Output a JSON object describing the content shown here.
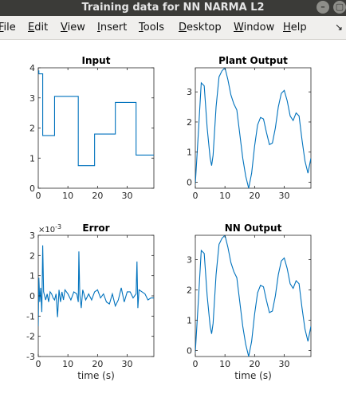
{
  "window": {
    "title": "Training data for NN NARMA L2",
    "minimize_glyph": "–",
    "maximize_glyph": "▢"
  },
  "menubar": {
    "items": [
      {
        "label": "File",
        "u": "F",
        "rest": "ile"
      },
      {
        "label": "Edit",
        "u": "E",
        "rest": "dit"
      },
      {
        "label": "View",
        "u": "V",
        "rest": "iew"
      },
      {
        "label": "Insert",
        "u": "I",
        "rest": "nsert"
      },
      {
        "label": "Tools",
        "u": "T",
        "rest": "ools"
      },
      {
        "label": "Desktop",
        "u": "D",
        "rest": "esktop"
      },
      {
        "label": "Window",
        "u": "W",
        "rest": "indow"
      },
      {
        "label": "Help",
        "u": "H",
        "rest": "elp"
      }
    ],
    "overflow_icon": "arrow-icon",
    "overflow_glyph": "↘"
  },
  "chart_data": [
    {
      "type": "line",
      "title": "Input",
      "xlabel": "",
      "ylabel": "",
      "xlim": [
        0,
        39
      ],
      "ylim": [
        0,
        4
      ],
      "xticks": [
        0,
        10,
        20,
        30
      ],
      "yticks": [
        0,
        1,
        2,
        3,
        4
      ],
      "color": "#0072bd",
      "series": [
        {
          "x": [
            0,
            0.2,
            0.2,
            1.5,
            1.5,
            5.5,
            5.5,
            13.5,
            13.5,
            19,
            19,
            26,
            26,
            33,
            33,
            39
          ],
          "y": [
            3.9,
            3.9,
            3.8,
            3.8,
            1.75,
            1.75,
            3.05,
            3.05,
            0.75,
            0.75,
            1.8,
            1.8,
            2.85,
            2.85,
            1.1,
            1.1
          ]
        }
      ]
    },
    {
      "type": "line",
      "title": "Plant Output",
      "xlabel": "",
      "ylabel": "",
      "xlim": [
        0,
        39
      ],
      "ylim": [
        -0.2,
        3.8
      ],
      "xticks": [
        0,
        10,
        20,
        30
      ],
      "yticks": [
        0,
        1,
        2,
        3
      ],
      "color": "#0072bd",
      "series": [
        {
          "x": [
            0,
            1,
            2,
            3,
            4,
            5,
            5.5,
            6,
            7,
            8,
            9,
            10,
            11,
            12,
            13,
            14,
            15,
            16,
            17,
            18,
            19,
            20,
            21,
            22,
            23,
            24,
            25,
            26,
            27,
            28,
            29,
            30,
            31,
            32,
            33,
            34,
            35,
            36,
            37,
            38,
            39
          ],
          "y": [
            -0.05,
            1.6,
            3.3,
            3.2,
            1.8,
            0.8,
            0.55,
            0.9,
            2.5,
            3.5,
            3.7,
            3.8,
            3.4,
            2.9,
            2.6,
            2.4,
            1.6,
            0.8,
            0.2,
            -0.2,
            0.3,
            1.2,
            1.9,
            2.15,
            2.1,
            1.65,
            1.25,
            1.3,
            1.8,
            2.5,
            2.95,
            3.05,
            2.7,
            2.2,
            2.05,
            2.3,
            2.2,
            1.4,
            0.7,
            0.3,
            0.8
          ]
        }
      ]
    },
    {
      "type": "line",
      "title": "Error",
      "exponent_label": "×10",
      "exponent_power": "-3",
      "xlabel": "time (s)",
      "ylabel": "",
      "xlim": [
        0,
        39
      ],
      "ylim": [
        -3,
        3
      ],
      "xticks": [
        0,
        10,
        20,
        30
      ],
      "yticks": [
        -3,
        -2,
        -1,
        0,
        1,
        2,
        3
      ],
      "color": "#0072bd",
      "series": [
        {
          "x": [
            0,
            0.2,
            0.5,
            0.8,
            1.2,
            1.5,
            1.8,
            2.5,
            3,
            3.5,
            4,
            4.5,
            5,
            5.5,
            6,
            6.5,
            7,
            7.5,
            8,
            8.5,
            9,
            10,
            11,
            12,
            13,
            13.5,
            13.7,
            14,
            14.5,
            15,
            16,
            17,
            18,
            19,
            20,
            21,
            22,
            23,
            24,
            25,
            26,
            27,
            28,
            29,
            30,
            31,
            32,
            33,
            33.3,
            33.6,
            34,
            35,
            36,
            37,
            38,
            39
          ],
          "y": [
            -1.5,
            0.9,
            -0.3,
            0.4,
            -0.8,
            2.5,
            0.2,
            -0.2,
            0.1,
            -0.3,
            0.2,
            0.1,
            -0.1,
            -0.2,
            0.1,
            -1.05,
            0.3,
            -0.3,
            0.2,
            -0.2,
            0.3,
            0.1,
            -0.2,
            0.2,
            0.1,
            -0.3,
            2.2,
            0.1,
            -0.6,
            0.3,
            -0.2,
            0.1,
            -0.2,
            0.2,
            0.3,
            -0.1,
            0.1,
            -0.3,
            -0.4,
            0.1,
            -0.5,
            -0.2,
            0.4,
            -0.3,
            0.2,
            0.2,
            -0.1,
            0.1,
            1.7,
            -0.6,
            0.3,
            0.2,
            0.1,
            -0.2,
            -0.1,
            -0.1
          ]
        }
      ]
    },
    {
      "type": "line",
      "title": "NN Output",
      "xlabel": "time (s)",
      "ylabel": "",
      "xlim": [
        0,
        39
      ],
      "ylim": [
        -0.2,
        3.8
      ],
      "xticks": [
        0,
        10,
        20,
        30
      ],
      "yticks": [
        0,
        1,
        2,
        3
      ],
      "color": "#0072bd",
      "series": [
        {
          "x": [
            0,
            1,
            2,
            3,
            4,
            5,
            5.5,
            6,
            7,
            8,
            9,
            10,
            11,
            12,
            13,
            14,
            15,
            16,
            17,
            18,
            19,
            20,
            21,
            22,
            23,
            24,
            25,
            26,
            27,
            28,
            29,
            30,
            31,
            32,
            33,
            34,
            35,
            36,
            37,
            38,
            39
          ],
          "y": [
            -0.05,
            1.6,
            3.3,
            3.2,
            1.8,
            0.8,
            0.55,
            0.9,
            2.5,
            3.5,
            3.7,
            3.8,
            3.4,
            2.9,
            2.6,
            2.4,
            1.6,
            0.8,
            0.2,
            -0.2,
            0.3,
            1.2,
            1.9,
            2.15,
            2.1,
            1.65,
            1.25,
            1.3,
            1.8,
            2.5,
            2.95,
            3.05,
            2.7,
            2.2,
            2.05,
            2.3,
            2.2,
            1.4,
            0.7,
            0.3,
            0.8
          ]
        }
      ]
    }
  ]
}
